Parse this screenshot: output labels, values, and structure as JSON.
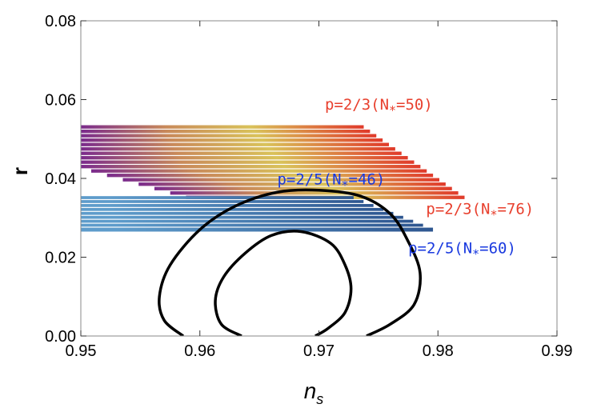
{
  "chart_data": {
    "type": "area",
    "title": "",
    "xlabel": "n",
    "xlabel_sub": "s",
    "ylabel": "r",
    "xlim": [
      0.95,
      0.99
    ],
    "ylim": [
      0.0,
      0.08
    ],
    "xticks": [
      "0.95",
      "0.96",
      "0.97",
      "0.98",
      "0.99"
    ],
    "yticks": [
      "0.00",
      "0.02",
      "0.04",
      "0.06",
      "0.08"
    ],
    "grid": false,
    "legend": "none",
    "series": [
      {
        "name": "p=2/3",
        "style": "stepped band, gradient purple-yellow-red",
        "colors": [
          "#7a2a8c",
          "#c98a5a",
          "#d9c25a",
          "#e03a2a"
        ],
        "upper_left": [
          0.95,
          0.0535
        ],
        "upper_right": [
          0.9735,
          0.0535
        ],
        "lower_right": [
          0.9825,
          0.0345
        ],
        "lower_left_upper": [
          0.95,
          0.0425
        ],
        "lower_left_corner": [
          0.9595,
          0.0345
        ],
        "steps": 17
      },
      {
        "name": "p=2/5",
        "style": "stepped band, gradient light blue-dark blue",
        "colors": [
          "#5e9ccb",
          "#2e5690"
        ],
        "upper_left": [
          0.95,
          0.0355
        ],
        "upper_right": [
          0.9725,
          0.0355
        ],
        "lower_right": [
          0.98,
          0.0265
        ],
        "lower_left": [
          0.95,
          0.0265
        ],
        "steps": 9
      },
      {
        "name": "contour-outer",
        "color": "#000000",
        "points": [
          [
            0.9586,
            0.0
          ],
          [
            0.957,
            0.004
          ],
          [
            0.9566,
            0.01
          ],
          [
            0.9575,
            0.018
          ],
          [
            0.96,
            0.027
          ],
          [
            0.963,
            0.033
          ],
          [
            0.9665,
            0.0365
          ],
          [
            0.97,
            0.037
          ],
          [
            0.9735,
            0.0355
          ],
          [
            0.976,
            0.031
          ],
          [
            0.9775,
            0.024
          ],
          [
            0.9785,
            0.016
          ],
          [
            0.978,
            0.008
          ],
          [
            0.976,
            0.003
          ],
          [
            0.974,
            0.0
          ]
        ]
      },
      {
        "name": "contour-inner",
        "color": "#000000",
        "points": [
          [
            0.9635,
            0.0
          ],
          [
            0.9618,
            0.003
          ],
          [
            0.9613,
            0.009
          ],
          [
            0.962,
            0.015
          ],
          [
            0.9638,
            0.021
          ],
          [
            0.966,
            0.0255
          ],
          [
            0.9685,
            0.0265
          ],
          [
            0.971,
            0.0235
          ],
          [
            0.9722,
            0.018
          ],
          [
            0.9727,
            0.012
          ],
          [
            0.9722,
            0.006
          ],
          [
            0.9708,
            0.002
          ],
          [
            0.9697,
            0.0
          ]
        ]
      }
    ],
    "annotations": [
      {
        "text": "p=2/3(N",
        "sub": "*",
        "tail": "=50)",
        "color": "#e8402e",
        "x": 0.9705,
        "y": 0.0575
      },
      {
        "text": "p=2/3(N",
        "sub": "*",
        "tail": "=76)",
        "color": "#e8402e",
        "x": 0.979,
        "y": 0.031
      },
      {
        "text": "p=2/5(N",
        "sub": "*",
        "tail": "=46)",
        "color": "#1a3adf",
        "x": 0.9665,
        "y": 0.0385
      },
      {
        "text": "p=2/5(N",
        "sub": "*",
        "tail": "=60)",
        "color": "#1a3adf",
        "x": 0.9775,
        "y": 0.021
      }
    ]
  }
}
